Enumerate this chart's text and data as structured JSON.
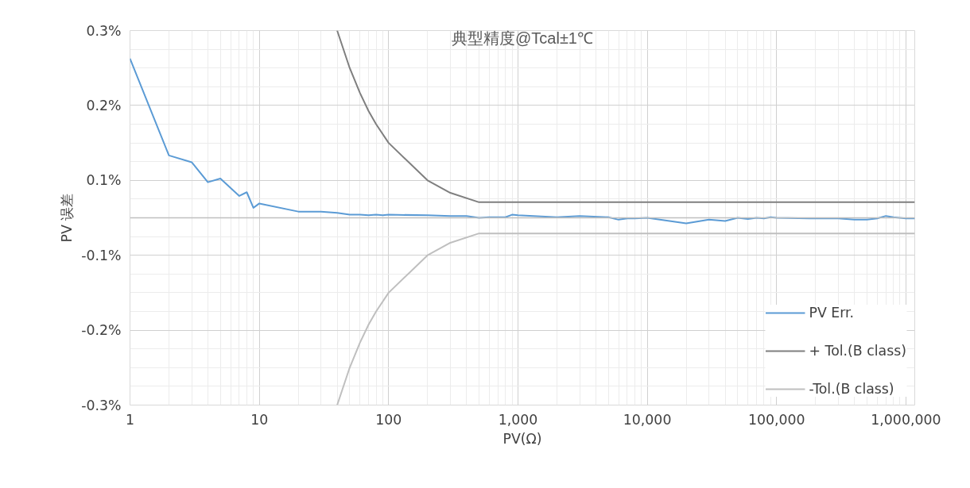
{
  "chart_data": {
    "type": "line",
    "title": "典型精度@Tcal±1℃",
    "xlabel": "PV(Ω)",
    "ylabel": "PV 误差",
    "log": "x",
    "grid": true,
    "legend": "bottom right",
    "marker": "none",
    "line_style": "solid",
    "xlim": [
      1,
      1170000
    ],
    "xticks": [
      {
        "value": 1,
        "label": "1"
      },
      {
        "value": 10,
        "label": "10"
      },
      {
        "value": 100,
        "label": "100"
      },
      {
        "value": 1000,
        "label": "1,000"
      },
      {
        "value": 10000,
        "label": "10,000"
      },
      {
        "value": 100000,
        "label": "100,000"
      },
      {
        "value": 1000000,
        "label": "1,000,000"
      }
    ],
    "ylim": [
      -0.3,
      0.3
    ],
    "yticks": [
      {
        "value": -0.3,
        "label": "-0.3%"
      },
      {
        "value": -0.18,
        "label": "-0.2%"
      },
      {
        "value": -0.06,
        "label": "-0.1%"
      },
      {
        "value": 0.06,
        "label": "0.1%"
      },
      {
        "value": 0.18,
        "label": "0.2%"
      },
      {
        "value": 0.3,
        "label": "0.3%"
      }
    ],
    "ref_lines": [
      {
        "axis": "y",
        "value": 0,
        "color": "#bfbfbf"
      }
    ],
    "series": [
      {
        "name": "PV Err.",
        "color": "#5b9bd5",
        "x": [
          1,
          2,
          3,
          4,
          5,
          7,
          8,
          9,
          10,
          20,
          30,
          40,
          50,
          60,
          70,
          80,
          90,
          100,
          200,
          300,
          400,
          500,
          600,
          700,
          800,
          900,
          1000,
          2000,
          3000,
          5000,
          6000,
          7000,
          8000,
          10000,
          20000,
          30000,
          40000,
          50000,
          60000,
          70000,
          80000,
          90000,
          100000,
          200000,
          300000,
          400000,
          500000,
          600000,
          700000,
          800000,
          1000000,
          1170000
        ],
        "values": [
          0.255,
          0.1,
          0.089,
          0.057,
          0.063,
          0.035,
          0.041,
          0.016,
          0.023,
          0.01,
          0.01,
          0.008,
          0.005,
          0.005,
          0.004,
          0.005,
          0.004,
          0.005,
          0.004,
          0.003,
          0.003,
          0.0,
          0.001,
          0.001,
          0.001,
          0.005,
          0.004,
          0.001,
          0.003,
          0.001,
          -0.003,
          -0.001,
          -0.001,
          0.0,
          -0.009,
          -0.003,
          -0.005,
          0.0,
          -0.002,
          0.0,
          -0.001,
          0.001,
          0.0,
          -0.001,
          -0.001,
          -0.003,
          -0.003,
          -0.001,
          0.003,
          0.001,
          -0.001,
          -0.001
        ]
      },
      {
        "name": "+ Tol.(B class)",
        "color": "#7f7f7f",
        "x": [
          40,
          50,
          60,
          70,
          80,
          100,
          200,
          300,
          500,
          1170000
        ],
        "values": [
          0.3,
          0.24,
          0.2,
          0.171,
          0.15,
          0.12,
          0.06,
          0.04,
          0.025,
          0.025
        ]
      },
      {
        "name": "-Tol.(B class)",
        "color": "#bfbfbf",
        "x": [
          40,
          50,
          60,
          70,
          80,
          100,
          200,
          300,
          500,
          1170000
        ],
        "values": [
          -0.3,
          -0.24,
          -0.2,
          -0.171,
          -0.15,
          -0.12,
          -0.06,
          -0.04,
          -0.025,
          -0.025
        ]
      }
    ]
  }
}
